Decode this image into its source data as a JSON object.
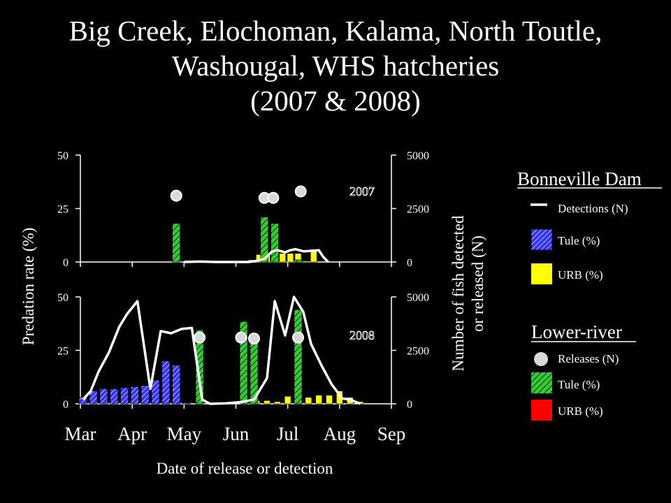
{
  "title_lines": [
    "Big Creek, Elochoman, Kalama, North Toutle,",
    "Washougal, WHS hatcheries",
    "(2007 & 2008)"
  ],
  "colors": {
    "background": "#000000",
    "text": "#ffffff",
    "detections_line": "#ffffff",
    "bonneville_tule": "#3333ff",
    "bonneville_urb": "#ffff00",
    "lower_river_tule": "#33cc33",
    "lower_river_urb": "#ff0000",
    "releases_marker": "#d9d9d9"
  },
  "axes": {
    "xlabel": "Date of release or detection",
    "ylabel_left": "Predation rate (%)",
    "ylabel_right_lines": [
      "Number of fish detected",
      "or released (N)"
    ],
    "x_ticks": [
      "Mar",
      "Apr",
      "May",
      "Jun",
      "Jul",
      "Aug",
      "Sep"
    ]
  },
  "legend": {
    "bonneville_heading": "Bonneville Dam",
    "lower_river_heading": "Lower-river",
    "items": {
      "detections": "Detections (N)",
      "bonneville_tule": "Tule (%)",
      "bonneville_urb": "URB (%)",
      "releases": "Releases (N)",
      "lower_river_tule": "Tule (%)",
      "lower_river_urb": "URB (%)"
    }
  },
  "chart_data": [
    {
      "type": "bar",
      "panel_label": "2007",
      "xlim_month": [
        0,
        6
      ],
      "ylim_left": [
        0,
        50
      ],
      "ylim_right": [
        0,
        5000
      ],
      "y_ticks_left": [
        "0",
        "25",
        "50"
      ],
      "y_ticks_right": [
        "0",
        "2500",
        "5000"
      ],
      "series": [
        {
          "name": "Detections (N)",
          "kind": "line",
          "axis": "right",
          "x": [
            2.0,
            2.3,
            2.6,
            2.9,
            3.1,
            3.25,
            3.4,
            3.55,
            3.7,
            3.8,
            3.95,
            4.05,
            4.15,
            4.3,
            4.45,
            4.6,
            4.68,
            4.78
          ],
          "y": [
            0,
            20,
            0,
            0,
            0,
            0,
            50,
            150,
            500,
            550,
            450,
            550,
            600,
            500,
            520,
            550,
            250,
            0
          ]
        },
        {
          "name": "Bonneville Dam URB (%)",
          "kind": "bar",
          "axis": "left",
          "x": [
            3.3,
            3.45,
            3.6,
            3.75,
            3.9,
            4.05,
            4.2,
            4.35,
            4.5
          ],
          "y": [
            1,
            3.5,
            4,
            3,
            4,
            4,
            4,
            0.5,
            6
          ]
        },
        {
          "name": "Lower-river Tule (%)",
          "kind": "bar",
          "axis": "left",
          "x": [
            1.85,
            3.55,
            3.75,
            4.2
          ],
          "y": [
            18,
            21,
            18,
            1
          ]
        },
        {
          "name": "Releases (N)",
          "kind": "marker",
          "axis": "right",
          "x": [
            1.85,
            3.55,
            3.72,
            4.25
          ],
          "y": [
            3100,
            3000,
            3000,
            3300
          ]
        }
      ]
    },
    {
      "type": "bar",
      "panel_label": "2008",
      "xlim_month": [
        0,
        6
      ],
      "ylim_left": [
        0,
        50
      ],
      "ylim_right": [
        0,
        5000
      ],
      "y_ticks_left": [
        "0",
        "25",
        "50"
      ],
      "y_ticks_right": [
        "0",
        "2500",
        "5000"
      ],
      "series": [
        {
          "name": "Detections (N)",
          "kind": "line",
          "axis": "right",
          "x": [
            0.05,
            0.2,
            0.35,
            0.55,
            0.75,
            0.9,
            1.1,
            1.35,
            1.55,
            1.75,
            1.95,
            2.15,
            2.35,
            2.5,
            2.8,
            3.1,
            3.35,
            3.6,
            3.75,
            3.95,
            4.12,
            4.3,
            4.45,
            4.65,
            4.85,
            5.05,
            5.2,
            5.4
          ],
          "y": [
            200,
            600,
            1500,
            2400,
            3600,
            4200,
            4800,
            700,
            3400,
            3300,
            3500,
            3550,
            200,
            0,
            20,
            80,
            200,
            1200,
            4800,
            3200,
            5000,
            4300,
            2800,
            1800,
            900,
            250,
            200,
            0
          ]
        },
        {
          "name": "Bonneville Dam Tule (%)",
          "kind": "bar",
          "axis": "left",
          "x": [
            0.05,
            0.25,
            0.45,
            0.65,
            0.85,
            1.05,
            1.25,
            1.45,
            1.65,
            1.85,
            2.05
          ],
          "y": [
            3,
            6,
            7,
            7,
            7.5,
            8,
            8.5,
            11,
            20,
            18,
            0.5
          ]
        },
        {
          "name": "Bonneville Dam URB (%)",
          "kind": "bar",
          "axis": "left",
          "x": [
            3.2,
            3.4,
            3.6,
            3.8,
            4.0,
            4.2,
            4.4,
            4.6,
            4.8,
            5.0,
            5.2,
            5.4
          ],
          "y": [
            0.5,
            1.5,
            1.5,
            1,
            3.5,
            3,
            3,
            4,
            4,
            6,
            3,
            1
          ]
        },
        {
          "name": "Lower-river Tule (%)",
          "kind": "bar",
          "axis": "left",
          "x": [
            2.3,
            3.15,
            3.35,
            4.2
          ],
          "y": [
            34.5,
            38.5,
            29,
            44
          ]
        },
        {
          "name": "Releases (N)",
          "kind": "marker",
          "axis": "right",
          "x": [
            2.3,
            3.1,
            3.35,
            4.2
          ],
          "y": [
            3100,
            3100,
            3050,
            3100
          ]
        }
      ]
    }
  ]
}
